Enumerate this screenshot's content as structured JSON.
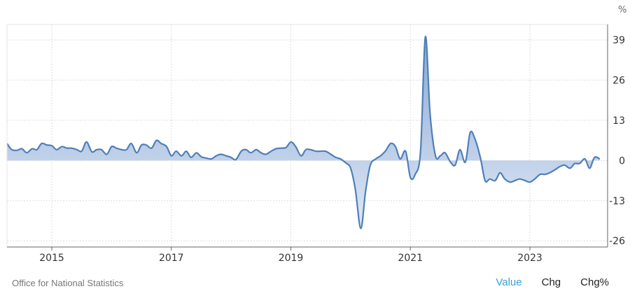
{
  "unit_label": "%",
  "source": "Office for National Statistics",
  "tabs": [
    {
      "label": "Value",
      "active": true
    },
    {
      "label": "Chg",
      "active": false
    },
    {
      "label": "Chg%",
      "active": false
    }
  ],
  "colors": {
    "line": "#4f7fb8",
    "fill_top": "#7b9fd1",
    "fill_bottom": "#dde6f4",
    "grid": "#dddddd",
    "axis": "#666666",
    "active_tab": "#3a9fd6"
  },
  "chart_data": {
    "type": "area",
    "title": "",
    "xlabel": "",
    "ylabel": "%",
    "grid": true,
    "x_ticks": [
      2015,
      2017,
      2019,
      2021,
      2023
    ],
    "y_ticks": [
      39,
      26,
      13,
      0,
      -13,
      -26
    ],
    "xlim": [
      2014.25,
      2024.3
    ],
    "ylim": [
      -28,
      44
    ],
    "series": [
      {
        "x": [
          2014.25,
          2014.33,
          2014.42,
          2014.5,
          2014.58,
          2014.67,
          2014.75,
          2014.83,
          2014.92,
          2015.0,
          2015.08,
          2015.17,
          2015.25,
          2015.33,
          2015.42,
          2015.5,
          2015.58,
          2015.67,
          2015.75,
          2015.83,
          2015.92,
          2016.0,
          2016.08,
          2016.17,
          2016.25,
          2016.33,
          2016.42,
          2016.5,
          2016.58,
          2016.67,
          2016.75,
          2016.83,
          2016.92,
          2017.0,
          2017.08,
          2017.17,
          2017.25,
          2017.33,
          2017.42,
          2017.5,
          2017.58,
          2017.67,
          2017.75,
          2017.83,
          2017.92,
          2018.0,
          2018.08,
          2018.17,
          2018.25,
          2018.33,
          2018.42,
          2018.5,
          2018.58,
          2018.67,
          2018.75,
          2018.83,
          2018.92,
          2019.0,
          2019.08,
          2019.17,
          2019.25,
          2019.33,
          2019.42,
          2019.5,
          2019.58,
          2019.67,
          2019.75,
          2019.83,
          2019.92,
          2020.0,
          2020.08,
          2020.17,
          2020.25,
          2020.33,
          2020.42,
          2020.5,
          2020.58,
          2020.67,
          2020.75,
          2020.83,
          2020.92,
          2021.0,
          2021.08,
          2021.17,
          2021.25,
          2021.33,
          2021.42,
          2021.5,
          2021.58,
          2021.67,
          2021.75,
          2021.83,
          2021.92,
          2022.0,
          2022.08,
          2022.17,
          2022.25,
          2022.33,
          2022.42,
          2022.5,
          2022.58,
          2022.67,
          2022.75,
          2022.83,
          2022.92,
          2023.0,
          2023.08,
          2023.17,
          2023.25,
          2023.33,
          2023.42,
          2023.5,
          2023.58,
          2023.67,
          2023.75,
          2023.83,
          2023.92,
          2024.0,
          2024.08,
          2024.17
        ],
        "values": [
          5.5,
          3.5,
          3.3,
          3.8,
          2.5,
          3.8,
          3.5,
          5.5,
          5.0,
          4.8,
          3.5,
          4.5,
          4.0,
          4.0,
          3.5,
          3.0,
          6.0,
          2.8,
          3.5,
          3.5,
          2.0,
          4.5,
          4.0,
          3.5,
          3.5,
          5.5,
          2.5,
          5.0,
          5.0,
          4.0,
          6.5,
          5.5,
          4.5,
          1.5,
          3.0,
          1.5,
          3.0,
          1.0,
          2.5,
          1.2,
          0.8,
          0.5,
          1.5,
          2.0,
          1.5,
          1.0,
          0.3,
          3.0,
          3.5,
          2.5,
          3.5,
          2.5,
          2.0,
          3.0,
          3.8,
          4.0,
          4.2,
          6.0,
          4.5,
          1.5,
          3.5,
          3.5,
          3.0,
          3.0,
          3.0,
          2.0,
          1.0,
          0.5,
          -0.8,
          -2.5,
          -9.5,
          -22.0,
          -10.0,
          -1.5,
          0.5,
          1.5,
          3.0,
          5.5,
          4.5,
          0.5,
          3.0,
          -5.5,
          -4.5,
          3.0,
          40.0,
          15.0,
          1.5,
          1.5,
          2.5,
          -0.5,
          -1.5,
          3.5,
          -0.5,
          9.0,
          7.0,
          1.0,
          -6.5,
          -6.0,
          -6.5,
          -4.0,
          -6.0,
          -7.0,
          -6.5,
          -6.0,
          -6.5,
          -7.0,
          -6.0,
          -4.5,
          -4.5,
          -4.0,
          -3.0,
          -2.0,
          -1.5,
          -2.5,
          -1.0,
          -1.0,
          0.5,
          -2.5,
          1.0,
          0.5
        ]
      }
    ]
  }
}
